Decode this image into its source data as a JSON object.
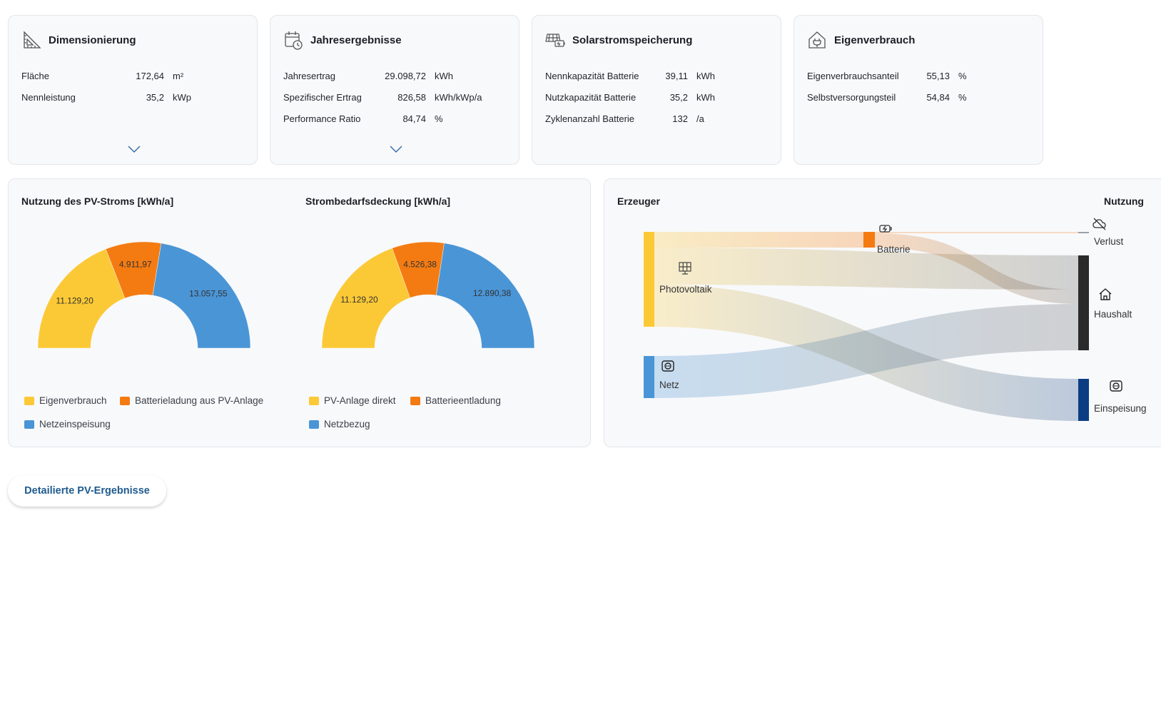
{
  "cards": [
    {
      "title": "Dimensionierung",
      "icon": "ruler-triangle-icon",
      "rows": [
        {
          "label": "Fläche",
          "value": "172,64",
          "unit": "m²"
        },
        {
          "label": "Nennleistung",
          "value": "35,2",
          "unit": "kWp"
        }
      ],
      "expandable": true
    },
    {
      "title": "Jahresergebnisse",
      "icon": "calendar-clock-icon",
      "rows": [
        {
          "label": "Jahresertrag",
          "value": "29.098,72",
          "unit": "kWh"
        },
        {
          "label": "Spezifischer Ertrag",
          "value": "826,58",
          "unit": "kWh/kWp/a"
        },
        {
          "label": "Performance Ratio",
          "value": "84,74",
          "unit": "%"
        }
      ],
      "expandable": true
    },
    {
      "title": "Solarstromspeicherung",
      "icon": "solar-battery-icon",
      "rows": [
        {
          "label": "Nennkapazität Batterie",
          "value": "39,11",
          "unit": "kWh"
        },
        {
          "label": "Nutzkapazität Batterie",
          "value": "35,2",
          "unit": "kWh"
        },
        {
          "label": "Zyklenanzahl Batterie",
          "value": "132",
          "unit": "/a"
        }
      ],
      "expandable": false
    },
    {
      "title": "Eigenverbrauch",
      "icon": "house-plug-icon",
      "rows": [
        {
          "label": "Eigenverbrauchsanteil",
          "value": "55,13",
          "unit": "%"
        },
        {
          "label": "Selbstversorgungsteil",
          "value": "54,84",
          "unit": "%"
        }
      ],
      "expandable": false
    }
  ],
  "charts_panel": {
    "left_title": "Nutzung des PV-Stroms [kWh/a]",
    "right_title": "Strombedarfsdeckung [kWh/a]",
    "left_legend": [
      "Eigenverbrauch",
      "Batterieladung aus PV-Anlage",
      "Netzeinspeisung"
    ],
    "right_legend": [
      "PV-Anlage direkt",
      "Batterieentladung",
      "Netzbezug"
    ]
  },
  "sankey_panel": {
    "left_header": "Erzeuger",
    "right_header": "Nutzung",
    "nodes": {
      "pv": "Photovoltaik",
      "netz": "Netz",
      "batterie": "Batterie",
      "verlust": "Verlust",
      "haushalt": "Haushalt",
      "einspeisung": "Einspeisung"
    }
  },
  "colors": {
    "yellow": "#fcc936",
    "orange": "#f47b12",
    "blue": "#4a95d6",
    "dark": "#2a2a2a",
    "navy": "#0b3d82"
  },
  "chart_data": [
    {
      "type": "pie",
      "title": "Nutzung des PV-Stroms [kWh/a]",
      "categories": [
        "Eigenverbrauch",
        "Batterieladung aus PV-Anlage",
        "Netzeinspeisung"
      ],
      "values": [
        11129.2,
        4911.97,
        13057.55
      ],
      "labels": [
        "11.129,20",
        "4.911,97",
        "13.057,55"
      ],
      "colors": [
        "#fcc936",
        "#f47b12",
        "#4a95d6"
      ]
    },
    {
      "type": "pie",
      "title": "Strombedarfsdeckung [kWh/a]",
      "categories": [
        "PV-Anlage direkt",
        "Batterieentladung",
        "Netzbezug"
      ],
      "values": [
        11129.2,
        4526.38,
        12890.38
      ],
      "labels": [
        "11.129,20",
        "4.526,38",
        "12.890,38"
      ],
      "colors": [
        "#fcc936",
        "#f47b12",
        "#4a95d6"
      ]
    }
  ],
  "button": {
    "label": "Detailierte PV-Ergebnisse"
  }
}
